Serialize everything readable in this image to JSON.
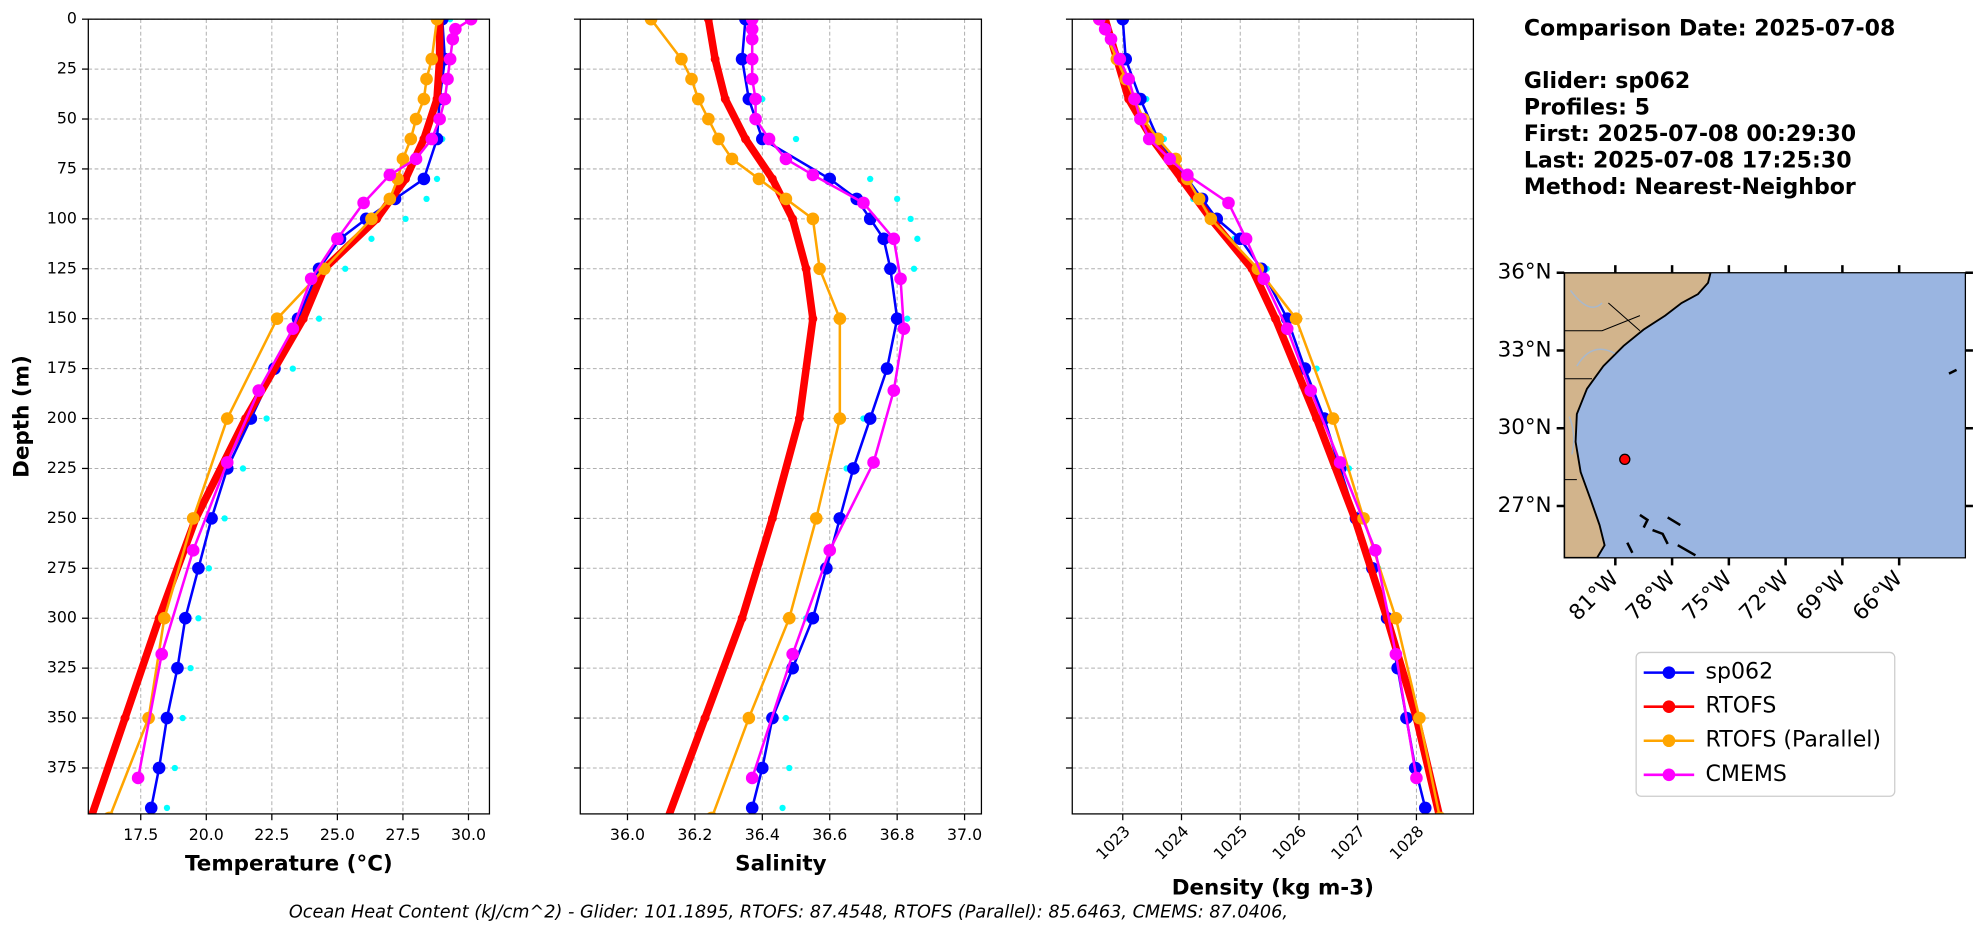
{
  "info": {
    "date_line": "Comparison Date: 2025-07-08",
    "lines": [
      "Glider: sp062",
      "Profiles: 5",
      "First: 2025-07-08 00:29:30",
      "Last: 2025-07-08 17:25:30",
      "Method: Nearest-Neighbor"
    ]
  },
  "footnote": "Ocean Heat Content (kJ/cm^2) - Glider: 101.1895,  RTOFS: 87.4548,  RTOFS (Parallel): 85.6463,  CMEMS: 87.0406,",
  "chart_data": [
    {
      "type": "profile",
      "xlabel": "Temperature (°C)",
      "ylabel": "Depth (m)",
      "xlim": [
        15.5,
        30.8
      ],
      "ylim": [
        398,
        0
      ],
      "xticks": [
        17.5,
        {
          "value": 20,
          "label": "20.0"
        },
        22.5,
        {
          "value": 25,
          "label": "25.0"
        },
        27.5,
        {
          "value": 30,
          "label": "30.0"
        }
      ],
      "yticks": [
        0,
        25,
        50,
        75,
        100,
        125,
        150,
        175,
        200,
        225,
        250,
        275,
        300,
        325,
        350,
        375
      ],
      "ytick_labels": true,
      "xtick_rotation": 0,
      "grid": true,
      "series": [
        {
          "color": "#00ffff",
          "linewidth": 0,
          "marker": "dot",
          "y": [
            0,
            20,
            40,
            60,
            80,
            90,
            100,
            110,
            125,
            150,
            175,
            200,
            225,
            250,
            275,
            300,
            325,
            350,
            375,
            395
          ],
          "x": [
            29.3,
            29.3,
            29.1,
            29.0,
            28.8,
            28.4,
            27.6,
            26.3,
            25.3,
            24.3,
            23.3,
            22.3,
            21.4,
            20.7,
            20.1,
            19.7,
            19.4,
            19.1,
            18.8,
            18.5
          ]
        },
        {
          "name": "sp062",
          "color": "#0000ff",
          "linewidth": 2,
          "marker": "circle",
          "y": [
            0,
            20,
            40,
            60,
            80,
            90,
            100,
            110,
            125,
            150,
            175,
            200,
            225,
            250,
            275,
            300,
            325,
            350,
            375,
            395
          ],
          "x": [
            29.0,
            29.1,
            28.9,
            28.8,
            28.3,
            27.2,
            26.1,
            25.1,
            24.3,
            23.5,
            22.6,
            21.7,
            20.8,
            20.2,
            19.7,
            19.2,
            18.9,
            18.5,
            18.2,
            17.9
          ]
        },
        {
          "name": "RTOFS",
          "color": "#ff0000",
          "linewidth": 6,
          "marker": "circle",
          "y": [
            0,
            20,
            40,
            60,
            80,
            100,
            125,
            150,
            200,
            250,
            300,
            350,
            400
          ],
          "x": [
            28.9,
            28.9,
            28.8,
            28.3,
            27.6,
            26.5,
            24.5,
            23.7,
            21.5,
            19.6,
            18.2,
            16.9,
            15.6
          ]
        },
        {
          "name": "RTOFS (Parallel)",
          "color": "#ffa500",
          "linewidth": 2,
          "marker": "circle",
          "y": [
            0,
            20,
            30,
            40,
            50,
            60,
            70,
            80,
            90,
            100,
            125,
            150,
            200,
            250,
            300,
            350,
            400
          ],
          "x": [
            28.8,
            28.6,
            28.4,
            28.3,
            28.0,
            27.8,
            27.5,
            27.3,
            27.0,
            26.3,
            24.5,
            22.7,
            20.8,
            19.5,
            18.4,
            17.8,
            16.3
          ]
        },
        {
          "name": "CMEMS",
          "color": "#ff00ff",
          "linewidth": 2,
          "marker": "circle",
          "y": [
            0,
            5,
            10,
            20,
            30,
            40,
            50,
            60,
            70,
            78,
            92,
            110,
            130,
            155,
            186,
            222,
            266,
            318,
            380
          ],
          "x": [
            30.1,
            29.5,
            29.4,
            29.3,
            29.2,
            29.1,
            28.9,
            28.6,
            28.0,
            27.0,
            26.0,
            25.0,
            24.0,
            23.3,
            22.0,
            20.8,
            19.5,
            18.3,
            17.4
          ]
        }
      ]
    },
    {
      "type": "profile",
      "xlabel": "Salinity",
      "xlim": [
        35.86,
        37.05
      ],
      "ylim": [
        398,
        0
      ],
      "xticks": [
        {
          "value": 36,
          "label": "36.0"
        },
        36.2,
        36.4,
        36.6,
        36.8,
        {
          "value": 37,
          "label": "37.0"
        }
      ],
      "yticks": [
        0,
        25,
        50,
        75,
        100,
        125,
        150,
        175,
        200,
        225,
        250,
        275,
        300,
        325,
        350,
        375
      ],
      "ytick_labels": false,
      "xtick_rotation": 0,
      "grid": true,
      "series": [
        {
          "color": "#00ffff",
          "linewidth": 0,
          "marker": "dot",
          "y": [
            0,
            20,
            40,
            60,
            80,
            90,
            100,
            110,
            125,
            150,
            175,
            200,
            225,
            250,
            275,
            300,
            325,
            350,
            375,
            395
          ],
          "x": [
            36.38,
            36.37,
            36.4,
            36.5,
            36.72,
            36.8,
            36.84,
            36.86,
            36.85,
            36.83,
            36.78,
            36.7,
            36.65,
            36.62,
            36.58,
            36.53,
            36.49,
            36.47,
            36.48,
            36.46
          ]
        },
        {
          "color": "#0000ff",
          "linewidth": 2,
          "marker": "circle",
          "y": [
            0,
            20,
            40,
            60,
            80,
            90,
            100,
            110,
            125,
            150,
            175,
            200,
            225,
            250,
            275,
            300,
            325,
            350,
            375,
            395
          ],
          "x": [
            36.35,
            36.34,
            36.36,
            36.4,
            36.6,
            36.68,
            36.72,
            36.76,
            36.78,
            36.8,
            36.77,
            36.72,
            36.67,
            36.63,
            36.59,
            36.55,
            36.49,
            36.43,
            36.4,
            36.37
          ]
        },
        {
          "color": "#ff0000",
          "linewidth": 6,
          "marker": "circle",
          "y": [
            0,
            20,
            40,
            60,
            80,
            100,
            125,
            150,
            200,
            250,
            300,
            350,
            400
          ],
          "x": [
            36.24,
            36.26,
            36.29,
            36.35,
            36.43,
            36.49,
            36.53,
            36.55,
            36.51,
            36.43,
            36.34,
            36.23,
            36.12
          ]
        },
        {
          "color": "#ffa500",
          "linewidth": 2,
          "marker": "circle",
          "y": [
            0,
            20,
            30,
            40,
            50,
            60,
            70,
            80,
            90,
            100,
            125,
            150,
            200,
            250,
            300,
            350,
            400
          ],
          "x": [
            36.07,
            36.16,
            36.19,
            36.21,
            36.24,
            36.27,
            36.31,
            36.39,
            36.47,
            36.55,
            36.57,
            36.63,
            36.63,
            36.56,
            36.48,
            36.36,
            36.25
          ]
        },
        {
          "color": "#ff00ff",
          "linewidth": 2,
          "marker": "circle",
          "y": [
            0,
            5,
            10,
            20,
            30,
            40,
            50,
            60,
            70,
            78,
            92,
            110,
            130,
            155,
            186,
            222,
            266,
            318,
            380
          ],
          "x": [
            36.37,
            36.37,
            36.37,
            36.37,
            36.37,
            36.38,
            36.38,
            36.42,
            36.47,
            36.55,
            36.7,
            36.79,
            36.81,
            36.82,
            36.79,
            36.73,
            36.6,
            36.49,
            36.37
          ]
        }
      ]
    },
    {
      "type": "profile",
      "xlabel": "Density (kg m-3)",
      "xlim": [
        1022.14,
        1028.97
      ],
      "ylim": [
        398,
        0
      ],
      "xticks": [
        1023,
        1024,
        1025,
        1026,
        1027,
        1028
      ],
      "yticks": [
        0,
        25,
        50,
        75,
        100,
        125,
        150,
        175,
        200,
        225,
        250,
        275,
        300,
        325,
        350,
        375
      ],
      "ytick_labels": false,
      "xtick_rotation": 45,
      "grid": true,
      "series": [
        {
          "color": "#00ffff",
          "linewidth": 0,
          "marker": "dot",
          "y": [
            0,
            20,
            40,
            60,
            80,
            90,
            100,
            110,
            125,
            150,
            175,
            200,
            225,
            250,
            275,
            300,
            325,
            350,
            375,
            395
          ],
          "x": [
            1023.05,
            1023.1,
            1023.4,
            1023.7,
            1024.0,
            1024.2,
            1024.5,
            1024.9,
            1025.45,
            1025.9,
            1026.3,
            1026.6,
            1026.85,
            1027.1,
            1027.35,
            1027.6,
            1027.75,
            1027.9,
            1028.05,
            1028.2
          ]
        },
        {
          "color": "#0000ff",
          "linewidth": 2,
          "marker": "circle",
          "y": [
            0,
            20,
            40,
            60,
            80,
            90,
            100,
            110,
            125,
            150,
            175,
            200,
            225,
            250,
            275,
            300,
            325,
            350,
            375,
            395
          ],
          "x": [
            1023.0,
            1023.05,
            1023.3,
            1023.6,
            1024.1,
            1024.35,
            1024.6,
            1025.0,
            1025.36,
            1025.8,
            1026.1,
            1026.43,
            1026.7,
            1026.97,
            1027.25,
            1027.5,
            1027.68,
            1027.83,
            1027.98,
            1028.15
          ]
        },
        {
          "color": "#ff0000",
          "linewidth": 6,
          "marker": "circle",
          "y": [
            0,
            20,
            40,
            60,
            80,
            100,
            125,
            150,
            200,
            250,
            300,
            350,
            400
          ],
          "x": [
            1022.7,
            1022.9,
            1023.1,
            1023.5,
            1024.0,
            1024.5,
            1025.2,
            1025.6,
            1026.3,
            1026.95,
            1027.5,
            1028.0,
            1028.4
          ]
        },
        {
          "color": "#ffa500",
          "linewidth": 2,
          "marker": "circle",
          "y": [
            0,
            20,
            30,
            40,
            50,
            60,
            70,
            80,
            90,
            100,
            125,
            150,
            200,
            250,
            300,
            350,
            400
          ],
          "x": [
            1022.6,
            1022.9,
            1023.05,
            1023.2,
            1023.35,
            1023.6,
            1023.9,
            1024.1,
            1024.3,
            1024.5,
            1025.3,
            1025.95,
            1026.58,
            1027.1,
            1027.65,
            1028.05,
            1028.4
          ]
        },
        {
          "color": "#ff00ff",
          "linewidth": 2,
          "marker": "circle",
          "y": [
            0,
            5,
            10,
            20,
            30,
            40,
            50,
            60,
            70,
            78,
            92,
            110,
            130,
            155,
            186,
            222,
            266,
            318,
            380
          ],
          "x": [
            1022.6,
            1022.7,
            1022.8,
            1022.95,
            1023.1,
            1023.2,
            1023.3,
            1023.45,
            1023.8,
            1024.1,
            1024.8,
            1025.1,
            1025.4,
            1025.8,
            1026.2,
            1026.7,
            1027.3,
            1027.65,
            1028.0
          ]
        }
      ]
    }
  ],
  "map": {
    "xlim": [
      -83.7,
      -62.5
    ],
    "ylim": [
      25.0,
      36.0
    ],
    "xticks": [
      {
        "value": -81,
        "label": "81°W"
      },
      {
        "value": -78,
        "label": "78°W"
      },
      {
        "value": -75,
        "label": "75°W"
      },
      {
        "value": -72,
        "label": "72°W"
      },
      {
        "value": -69,
        "label": "69°W"
      },
      {
        "value": -66,
        "label": "66°W"
      }
    ],
    "yticks": [
      {
        "value": 36,
        "label": "36°N"
      },
      {
        "value": 33,
        "label": "33°N"
      },
      {
        "value": 30,
        "label": "30°N"
      },
      {
        "value": 27,
        "label": "27°N"
      }
    ],
    "point": {
      "lon": -80.5,
      "lat": 28.8,
      "color": "#ff0000"
    }
  }
}
